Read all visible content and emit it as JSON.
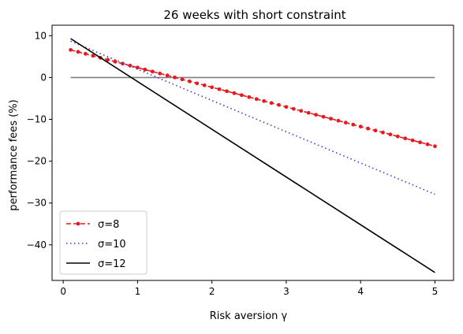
{
  "chart_data": {
    "type": "line",
    "title": "26 weeks with short constraint",
    "xlabel": "Risk aversion γ",
    "ylabel": "performance fees (%)",
    "xlim": [
      -0.15,
      5.25
    ],
    "ylim": [
      -48.5,
      12.5
    ],
    "xticks": [
      0,
      1,
      2,
      3,
      4,
      5
    ],
    "yticks": [
      -40,
      -30,
      -20,
      -10,
      0,
      10
    ],
    "xtick_labels": [
      "0",
      "1",
      "2",
      "3",
      "4",
      "5"
    ],
    "ytick_labels": [
      "−40",
      "−30",
      "−20",
      "−10",
      "0",
      "10"
    ],
    "grid": false,
    "legend_position": "lower-left",
    "reference_line": {
      "y": 0,
      "x_range": [
        0.1,
        5
      ],
      "color": "#808080"
    },
    "series": [
      {
        "name": "σ=8",
        "style": "dashed-dots",
        "color": "#e8191d",
        "x": [
          0.1,
          0.2,
          0.3,
          0.4,
          0.5,
          0.6,
          0.7,
          0.8,
          0.9,
          1.0,
          1.1,
          1.2,
          1.3,
          1.4,
          1.5,
          1.6,
          1.7,
          1.8,
          1.9,
          2.0,
          2.1,
          2.2,
          2.3,
          2.4,
          2.5,
          2.6,
          2.7,
          2.8,
          2.9,
          3.0,
          3.1,
          3.2,
          3.3,
          3.4,
          3.5,
          3.6,
          3.7,
          3.8,
          3.9,
          4.0,
          4.1,
          4.2,
          4.3,
          4.4,
          4.5,
          4.6,
          4.7,
          4.8,
          4.9,
          5.0
        ],
        "y": [
          6.6,
          6.13,
          5.66,
          5.19,
          4.72,
          4.25,
          3.78,
          3.31,
          2.84,
          2.37,
          1.9,
          1.43,
          0.96,
          0.49,
          0.02,
          -0.45,
          -0.92,
          -1.39,
          -1.86,
          -2.33,
          -2.8,
          -3.27,
          -3.74,
          -4.21,
          -4.68,
          -5.15,
          -5.62,
          -6.09,
          -6.56,
          -7.03,
          -7.5,
          -7.97,
          -8.44,
          -8.91,
          -9.38,
          -9.85,
          -10.32,
          -10.79,
          -11.26,
          -11.73,
          -12.2,
          -12.67,
          -13.14,
          -13.61,
          -14.08,
          -14.55,
          -15.02,
          -15.49,
          -15.96,
          -16.43
        ]
      },
      {
        "name": "σ=10",
        "style": "dotted",
        "color": "#3b3bd6",
        "x": [
          0.1,
          5.0
        ],
        "y": [
          8.7,
          -27.9
        ]
      },
      {
        "name": "σ=12",
        "style": "solid",
        "color": "#000000",
        "x": [
          0.1,
          5.0
        ],
        "y": [
          9.3,
          -46.6
        ]
      }
    ]
  }
}
